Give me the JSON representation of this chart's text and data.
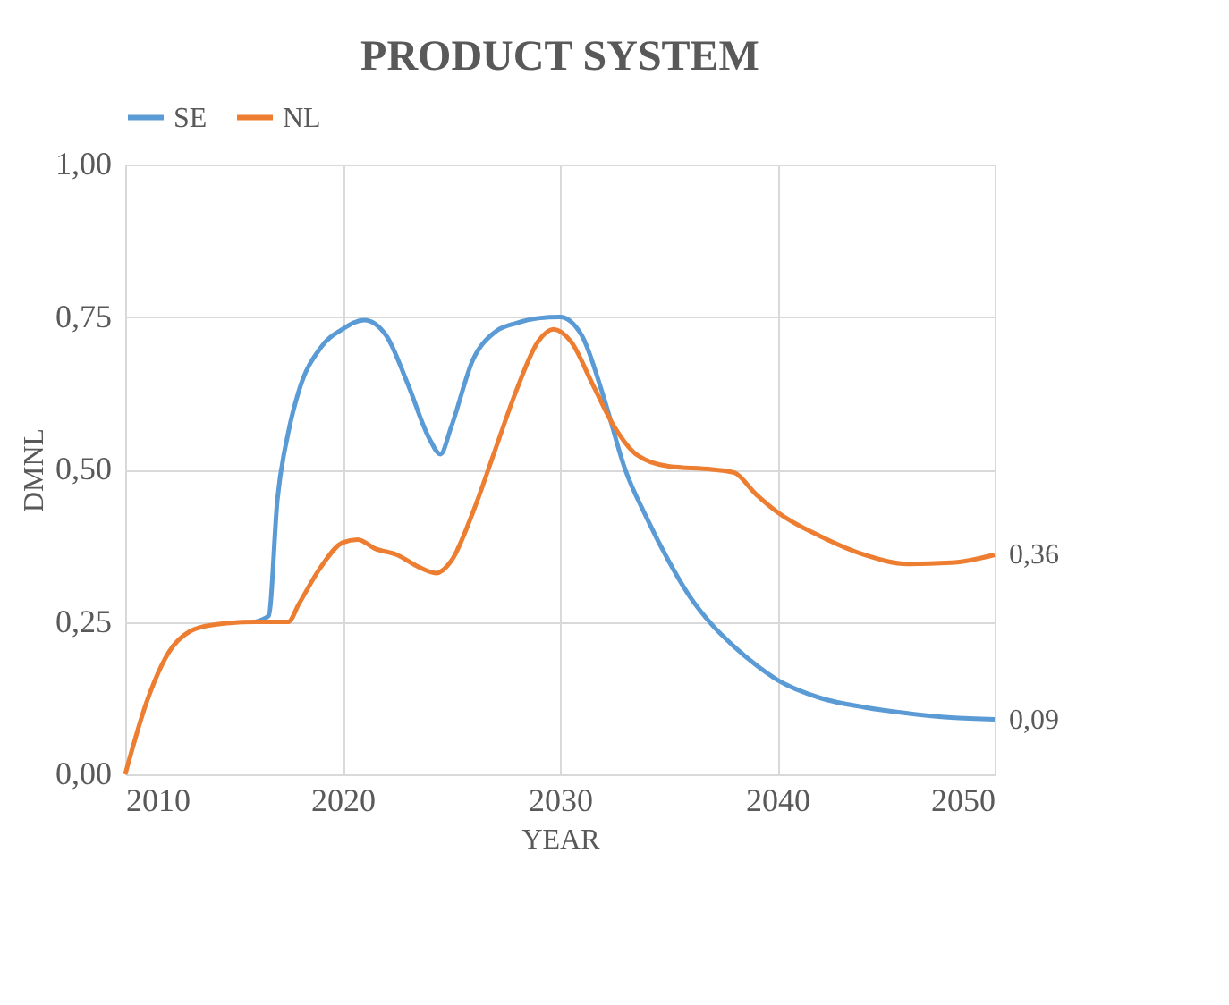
{
  "chart_data": {
    "type": "line",
    "title": "PRODUCT SYSTEM",
    "xlabel": "YEAR",
    "ylabel": "DMNL",
    "series": [
      {
        "name": "SE",
        "color": "#5b9bd5",
        "x": [
          2016,
          2016.6,
          2017,
          2017.5,
          2018,
          2019,
          2020,
          2021,
          2022,
          2023,
          2024,
          2024.5,
          2025,
          2026,
          2027,
          2028,
          2029,
          2030,
          2031,
          2032,
          2033,
          2034,
          2035,
          2036,
          2037,
          2038,
          2039,
          2040,
          2042,
          2044,
          2046,
          2048,
          2050
        ],
        "values": [
          0.25,
          0.26,
          0.45,
          0.56,
          0.63,
          0.7,
          0.73,
          0.745,
          0.72,
          0.64,
          0.55,
          0.525,
          0.57,
          0.68,
          0.725,
          0.74,
          0.748,
          0.75,
          0.72,
          0.62,
          0.5,
          0.42,
          0.35,
          0.29,
          0.245,
          0.21,
          0.18,
          0.155,
          0.125,
          0.11,
          0.1,
          0.093,
          0.09
        ],
        "value_labels": [
          null,
          null,
          null,
          null,
          null,
          null,
          null,
          null,
          null,
          null,
          null,
          null,
          null,
          null,
          null,
          null,
          null,
          null,
          null,
          null,
          null,
          null,
          null,
          null,
          null,
          null,
          null,
          null,
          null,
          null,
          null,
          null,
          "0,09"
        ]
      },
      {
        "name": "NL",
        "color": "#ed7d31",
        "x": [
          2010,
          2011,
          2012,
          2013,
          2014,
          2016,
          2017,
          2017.5,
          2018,
          2019,
          2020,
          2020.7,
          2021.5,
          2022.5,
          2023.5,
          2024.3,
          2025,
          2026,
          2027,
          2028,
          2029,
          2029.7,
          2030.5,
          2031.5,
          2032.5,
          2033.5,
          2035,
          2037,
          2038,
          2039,
          2040,
          2042,
          2044,
          2046,
          2048,
          2050
        ],
        "values": [
          0,
          0.12,
          0.2,
          0.235,
          0.245,
          0.25,
          0.25,
          0.25,
          0.28,
          0.34,
          0.38,
          0.385,
          0.37,
          0.36,
          0.34,
          0.33,
          0.35,
          0.43,
          0.53,
          0.63,
          0.71,
          0.73,
          0.71,
          0.64,
          0.57,
          0.525,
          0.505,
          0.5,
          0.495,
          0.46,
          0.43,
          0.39,
          0.36,
          0.345,
          0.347,
          0.36
        ],
        "value_labels": [
          null,
          null,
          null,
          null,
          null,
          null,
          null,
          null,
          null,
          null,
          null,
          null,
          null,
          null,
          null,
          null,
          null,
          null,
          null,
          null,
          null,
          null,
          null,
          null,
          null,
          null,
          null,
          null,
          null,
          null,
          null,
          null,
          null,
          null,
          null,
          "0,36"
        ]
      }
    ],
    "xlim": [
      2010,
      2050
    ],
    "xticks": [
      2010,
      2020,
      2030,
      2040,
      2050
    ],
    "ylim": [
      0,
      1
    ],
    "yticks": [
      {
        "value": 0,
        "label": "0,00"
      },
      {
        "value": 0.25,
        "label": "0,25"
      },
      {
        "value": 0.5,
        "label": "0,50"
      },
      {
        "value": 0.75,
        "label": "0,75"
      },
      {
        "value": 1,
        "label": "1,00"
      }
    ],
    "grid": true,
    "legend": "top",
    "marker": "none",
    "line_style": "solid"
  }
}
